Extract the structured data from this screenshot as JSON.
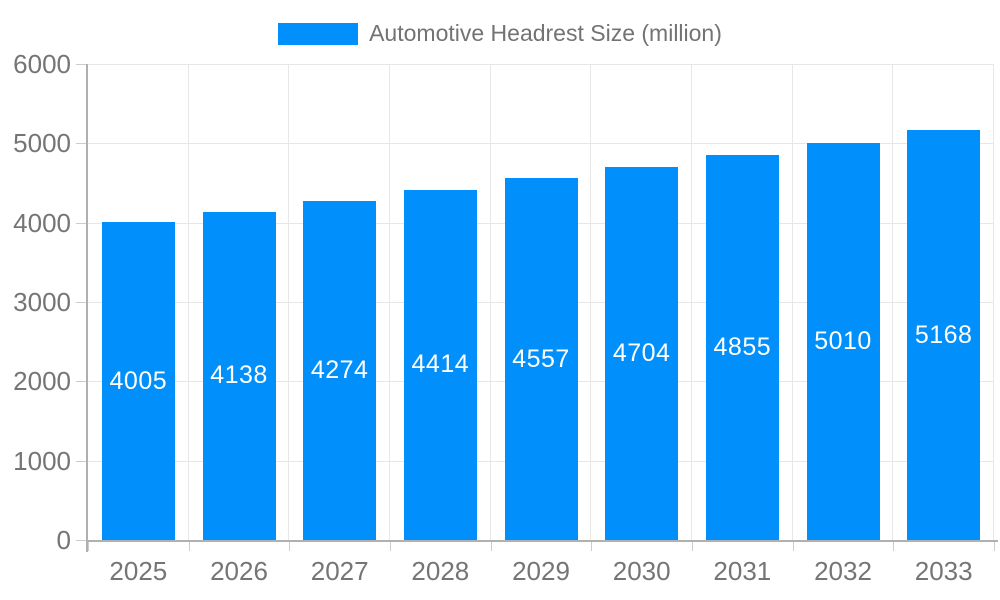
{
  "chart_data": {
    "type": "bar",
    "title": "Automotive Headrest Size (million)",
    "categories": [
      "2025",
      "2026",
      "2027",
      "2028",
      "2029",
      "2030",
      "2031",
      "2032",
      "2033"
    ],
    "series": [
      {
        "name": "Automotive Headrest Size (million)",
        "values": [
          4005,
          4138,
          4274,
          4414,
          4557,
          4704,
          4855,
          5010,
          5168
        ]
      }
    ],
    "data_labels": [
      "4005",
      "4138",
      "4274",
      "4414",
      "4557",
      "4704",
      "4855",
      "5010",
      "5168"
    ],
    "xlabel": "",
    "ylabel": "",
    "ylim": [
      0,
      6000
    ],
    "ytick_step": 1000,
    "ytick_labels": [
      "0",
      "1000",
      "2000",
      "3000",
      "4000",
      "5000",
      "6000"
    ],
    "grid": true,
    "legend_position": "top",
    "colors": {
      "bar": "#008FFB",
      "bar_label": "#ffffff",
      "axis_label": "#757575",
      "legend_label": "#737373",
      "grid_line": "#e7e7e7",
      "axis_line": "#b0b0b0",
      "tick": "#cccccc",
      "background": "#ffffff"
    }
  }
}
